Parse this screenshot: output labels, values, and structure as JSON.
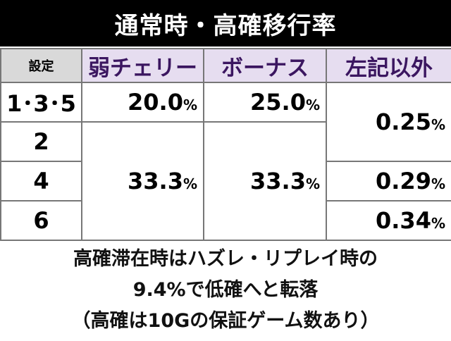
{
  "title": "通常時・高確移行率",
  "table": {
    "header": [
      "設定",
      "弱チェリー",
      "ボーナス",
      "左記以外"
    ],
    "settings": [
      "1･3･5",
      "2",
      "4",
      "6"
    ],
    "cells": {
      "cherry_135": {
        "number": "20.0",
        "unit": "%"
      },
      "bonus_135": {
        "number": "25.0",
        "unit": "%"
      },
      "other_135_2": {
        "number": "0.25",
        "unit": "%"
      },
      "cherry_246": {
        "number": "33.3",
        "unit": "%"
      },
      "bonus_246": {
        "number": "33.3",
        "unit": "%"
      },
      "other_4": {
        "number": "0.29",
        "unit": "%"
      },
      "other_6": {
        "number": "0.34",
        "unit": "%"
      }
    }
  },
  "notes": [
    "高確滞在時はハズレ・リプレイ時の",
    "9.4%で低確へと転落",
    "（高確は10Gの保証ゲーム数あり）"
  ]
}
